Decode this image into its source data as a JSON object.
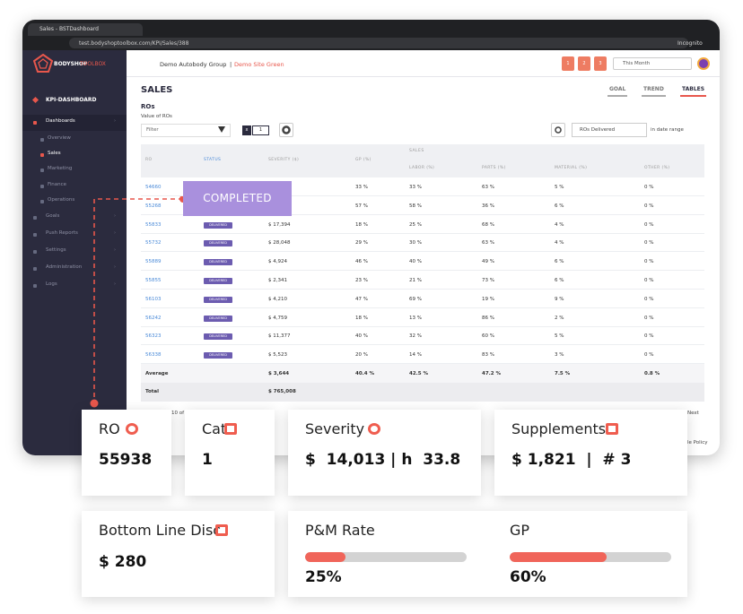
{
  "browser": {
    "tab": "Sales - BSTDashboard",
    "url": "test.bodyshoptoolbox.com/KPI/Sales/388",
    "profile": "Incognito"
  },
  "sidebar": {
    "logo": [
      "BODYSHOP",
      "TOOLBOX"
    ],
    "section": "KPI-DASHBOARD",
    "items": [
      "Dashboards",
      "Overview",
      "Sales",
      "Marketing",
      "Finance",
      "Operations",
      "Goals",
      "Push Reports",
      "Settings",
      "Administration",
      "Logs"
    ]
  },
  "header": {
    "org": "Demo Autobody Group",
    "separator": "|",
    "site": "Demo Site Green",
    "pages": [
      "1",
      "2",
      "3"
    ],
    "range": "This Month"
  },
  "page": {
    "title": "SALES",
    "tabs": [
      "GOAL",
      "TREND",
      "TABLES"
    ],
    "section": "ROs",
    "subtitle": "Value of ROs",
    "filter": "Filter",
    "chip_close": "x",
    "chip": "1",
    "select": "ROs Delivered",
    "select_suffix": "in date range"
  },
  "table": {
    "group_header": "SALES",
    "headers": [
      "RO",
      "STATUS",
      "SEVERITY ($)",
      "GP (%)",
      "LABOR (%)",
      "PARTS (%)",
      "MATERIAL (%)",
      "OTHER (%)"
    ],
    "rows": [
      [
        "54660",
        null,
        null,
        "33 %",
        "33 %",
        "63 %",
        "5 %",
        "0 %"
      ],
      [
        "55268",
        null,
        null,
        "57 %",
        "58 %",
        "36 %",
        "6 %",
        "0 %"
      ],
      [
        "55833",
        "DELIVERED",
        "$ 17,394",
        "18 %",
        "25 %",
        "68 %",
        "4 %",
        "0 %"
      ],
      [
        "55732",
        "DELIVERED",
        "$ 28,048",
        "29 %",
        "30 %",
        "63 %",
        "4 %",
        "0 %"
      ],
      [
        "55889",
        "DELIVERED",
        "$ 4,924",
        "46 %",
        "40 %",
        "49 %",
        "6 %",
        "0 %"
      ],
      [
        "55855",
        "DELIVERED",
        "$ 2,341",
        "23 %",
        "21 %",
        "73 %",
        "6 %",
        "0 %"
      ],
      [
        "56103",
        "DELIVERED",
        "$ 4,210",
        "47 %",
        "69 %",
        "19 %",
        "9 %",
        "0 %"
      ],
      [
        "56242",
        "DELIVERED",
        "$ 4,759",
        "18 %",
        "13 %",
        "86 %",
        "2 %",
        "0 %"
      ],
      [
        "56323",
        "DELIVERED",
        "$ 11,377",
        "40 %",
        "32 %",
        "60 %",
        "5 %",
        "0 %"
      ],
      [
        "56338",
        "DELIVERED",
        "$ 5,523",
        "20 %",
        "14 %",
        "83 %",
        "3 %",
        "0 %"
      ]
    ],
    "average": [
      "Average",
      null,
      "$ 3,644",
      "40.4 %",
      "42.5 %",
      "47.2 %",
      "7.5 %",
      "0.8 %"
    ],
    "total": [
      "Total",
      null,
      "$ 765,008",
      null,
      null,
      null,
      null,
      null
    ]
  },
  "footer": {
    "showing": "10 of",
    "next": "Next",
    "policy": "le Policy"
  },
  "callout": "COMPLETED",
  "cards": [
    {
      "label": "RO",
      "value": "55938"
    },
    {
      "label": "Cat",
      "value": "1"
    },
    {
      "label": "Severity",
      "value": "$  14,013 | h  33.8"
    },
    {
      "label": "Supplements",
      "value": "$ 1,821  |  # 3"
    },
    {
      "label": "Bottom Line Disc",
      "value": "$ 280"
    }
  ],
  "rates": [
    {
      "label": "P&M Rate",
      "value": 25,
      "value_label": "25%"
    },
    {
      "label": "GP",
      "value": 60,
      "value_label": "60%"
    }
  ]
}
